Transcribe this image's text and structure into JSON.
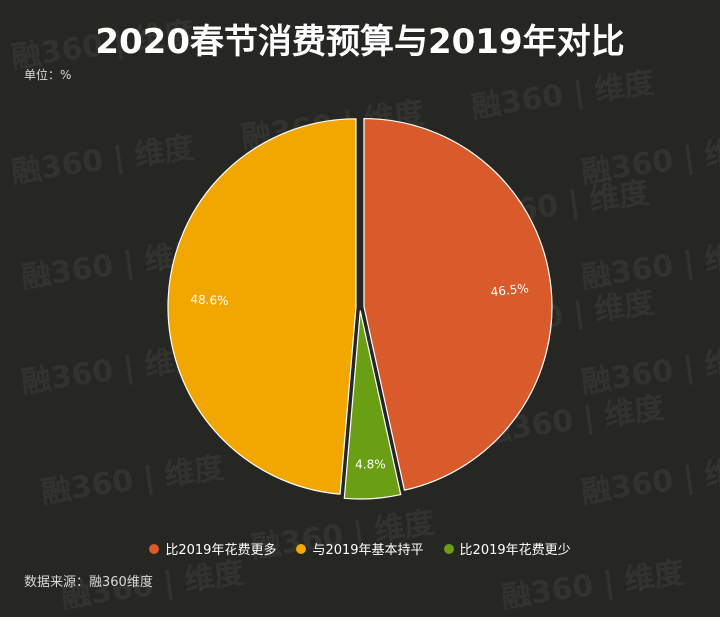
{
  "title": "2020春节消费预算与2019年对比",
  "unit_label": "单位：%",
  "source": "数据来源：融360维度",
  "watermark": "融360 | 维度",
  "chart_data": {
    "type": "pie",
    "slices": [
      {
        "label": "比2019年花费更多",
        "value": 46.5,
        "display": "46.5%",
        "color": "#d95a2b"
      },
      {
        "label": "比2019年花费更少",
        "value": 4.8,
        "display": "4.8%",
        "color": "#6a9e14"
      },
      {
        "label": "与2019年基本持平",
        "value": 48.6,
        "display": "48.6%",
        "color": "#f2a600"
      }
    ],
    "legend": [
      {
        "label": "比2019年花费更多",
        "color": "#d95a2b"
      },
      {
        "label": "与2019年基本持平",
        "color": "#f2a600"
      },
      {
        "label": "比2019年花费更少",
        "color": "#6a9e14"
      }
    ],
    "legend_position": "bottom",
    "exploded": true
  }
}
